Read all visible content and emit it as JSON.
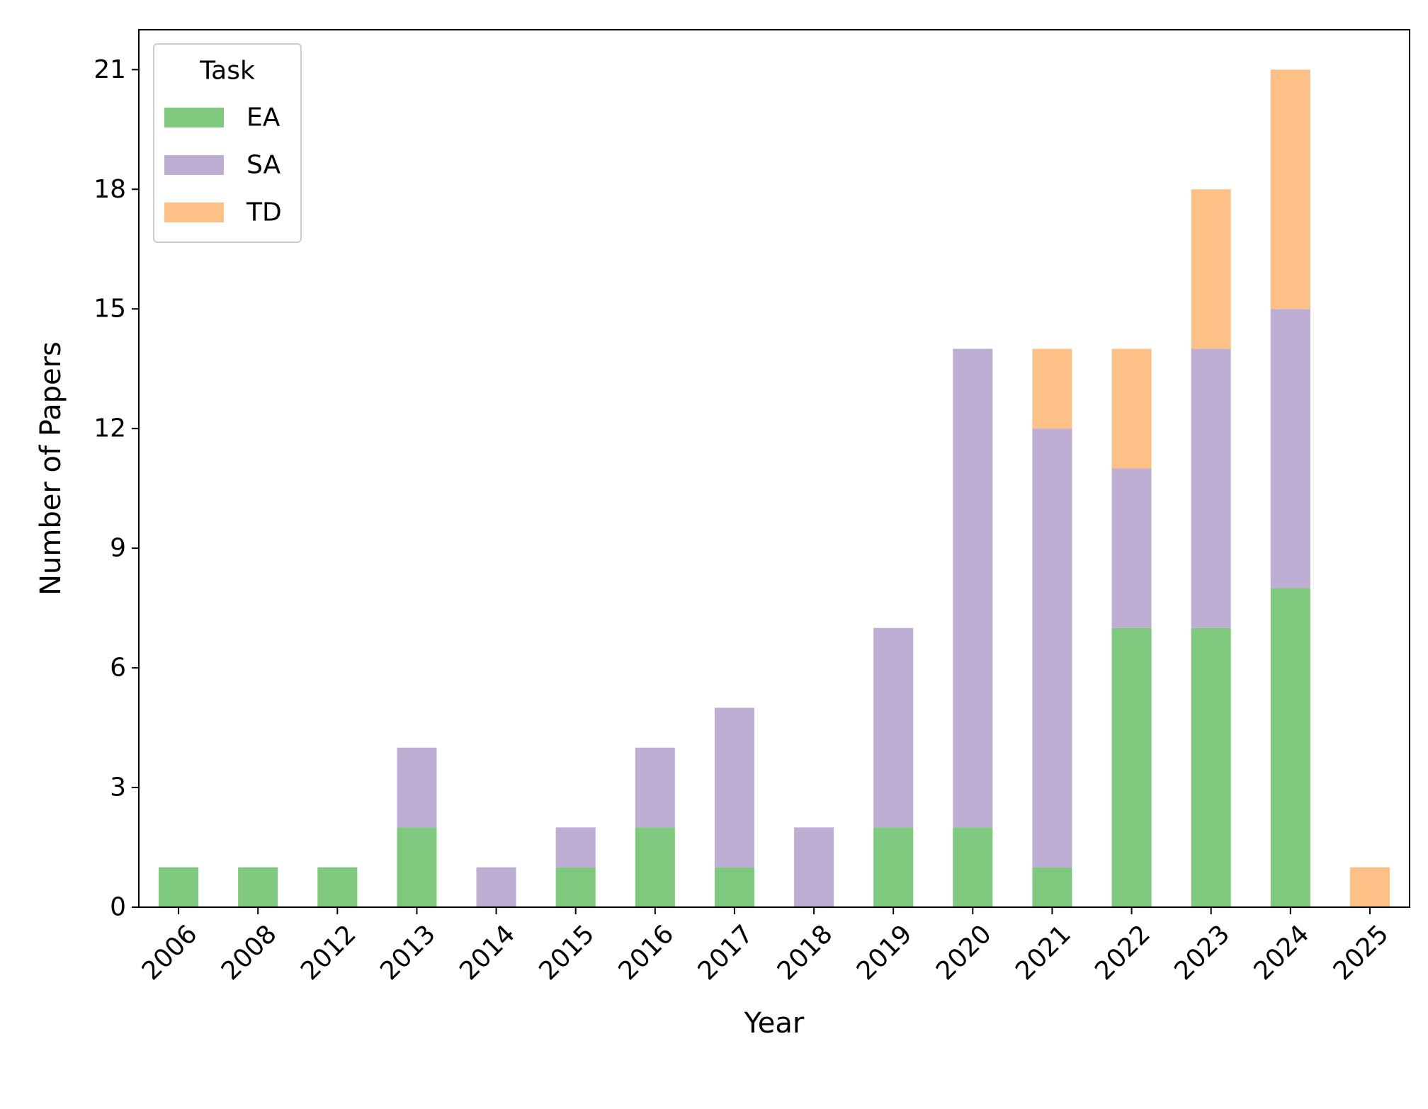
{
  "chart_data": {
    "type": "bar",
    "stacked": true,
    "categories": [
      "2006",
      "2008",
      "2012",
      "2013",
      "2014",
      "2015",
      "2016",
      "2017",
      "2018",
      "2019",
      "2020",
      "2021",
      "2022",
      "2023",
      "2024",
      "2025"
    ],
    "series": [
      {
        "name": "EA",
        "color": "#7fc97f",
        "values": [
          1,
          1,
          1,
          2,
          0,
          1,
          2,
          1,
          0,
          2,
          2,
          1,
          7,
          7,
          8,
          0
        ]
      },
      {
        "name": "SA",
        "color": "#beaed4",
        "values": [
          0,
          0,
          0,
          2,
          1,
          1,
          2,
          4,
          2,
          5,
          12,
          11,
          4,
          7,
          7,
          0
        ]
      },
      {
        "name": "TD",
        "color": "#fdc086",
        "values": [
          0,
          0,
          0,
          0,
          0,
          0,
          0,
          0,
          0,
          0,
          0,
          2,
          3,
          4,
          6,
          1
        ]
      }
    ],
    "title": "",
    "xlabel": "Year",
    "ylabel": "Number of Papers",
    "ylim": [
      0,
      22
    ],
    "yticks": [
      0,
      3,
      6,
      9,
      12,
      15,
      18,
      21
    ],
    "grid": false,
    "legend": {
      "title": "Task",
      "position": "top-left"
    }
  }
}
